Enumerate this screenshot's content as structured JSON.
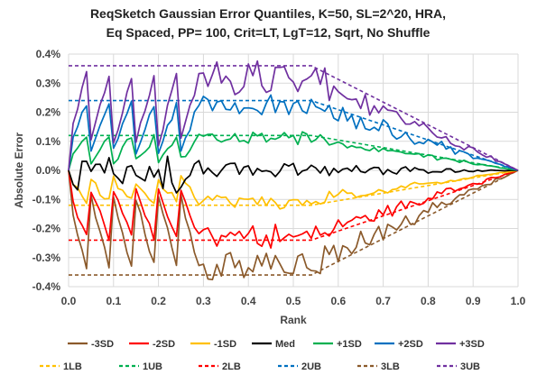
{
  "chart_data": {
    "type": "line",
    "title_lines": [
      "ReqSketch Gaussian Error Quantiles, K=50, SL=2^20,  HRA,",
      "Eq Spaced, PP= 100, Crit=LT, LgT=12, Sqrt, No Shuffle"
    ],
    "xlabel": "Rank",
    "ylabel": "Absolute Error",
    "xlim": [
      0,
      1
    ],
    "ylim": [
      -0.004,
      0.004
    ],
    "x_ticks": [
      "0.0",
      "0.1",
      "0.2",
      "0.3",
      "0.4",
      "0.5",
      "0.6",
      "0.7",
      "0.8",
      "0.9",
      "1.0"
    ],
    "y_ticks": [
      "0.4%",
      "0.3%",
      "0.2%",
      "0.1%",
      "0.0%",
      "-0.1%",
      "-0.2%",
      "-0.3%",
      "-0.4%"
    ],
    "grid": true,
    "legend_position": "bottom",
    "series": [
      {
        "name": "-3SD",
        "color": "#8B5A2B",
        "dash": false,
        "k": -3,
        "scale": 0.00107
      },
      {
        "name": "-2SD",
        "color": "#FF0000",
        "dash": false,
        "k": -2,
        "scale": 0.00112
      },
      {
        "name": "-1SD",
        "color": "#FFC000",
        "dash": false,
        "k": -1,
        "scale": 0.00108
      },
      {
        "name": "Med",
        "color": "#000000",
        "dash": false,
        "k": 0,
        "scale": 0.00025
      },
      {
        "name": "+1SD",
        "color": "#00B050",
        "dash": false,
        "k": 1,
        "scale": 0.00108
      },
      {
        "name": "+2SD",
        "color": "#0070C0",
        "dash": false,
        "k": 2,
        "scale": 0.00112
      },
      {
        "name": "+3SD",
        "color": "#7030A0",
        "dash": false,
        "k": 3,
        "scale": 0.00107
      },
      {
        "name": "1LB",
        "color": "#FFC000",
        "dash": true,
        "x": [
          0,
          0.54,
          1.0
        ],
        "y": [
          -0.0012,
          -0.0012,
          0
        ]
      },
      {
        "name": "1UB",
        "color": "#00B050",
        "dash": true,
        "x": [
          0,
          0.54,
          1.0
        ],
        "y": [
          0.0012,
          0.0012,
          0
        ]
      },
      {
        "name": "2LB",
        "color": "#FF0000",
        "dash": true,
        "x": [
          0,
          0.54,
          1.0
        ],
        "y": [
          -0.0024,
          -0.0024,
          0
        ]
      },
      {
        "name": "2UB",
        "color": "#0070C0",
        "dash": true,
        "x": [
          0,
          0.54,
          1.0
        ],
        "y": [
          0.0024,
          0.0024,
          0
        ]
      },
      {
        "name": "3LB",
        "color": "#8B5A2B",
        "dash": true,
        "x": [
          0,
          0.54,
          1.0
        ],
        "y": [
          -0.0036,
          -0.0036,
          0
        ]
      },
      {
        "name": "3UB",
        "color": "#7030A0",
        "dash": true,
        "x": [
          0,
          0.54,
          1.0
        ],
        "y": [
          0.0036,
          0.0036,
          0
        ]
      }
    ]
  }
}
